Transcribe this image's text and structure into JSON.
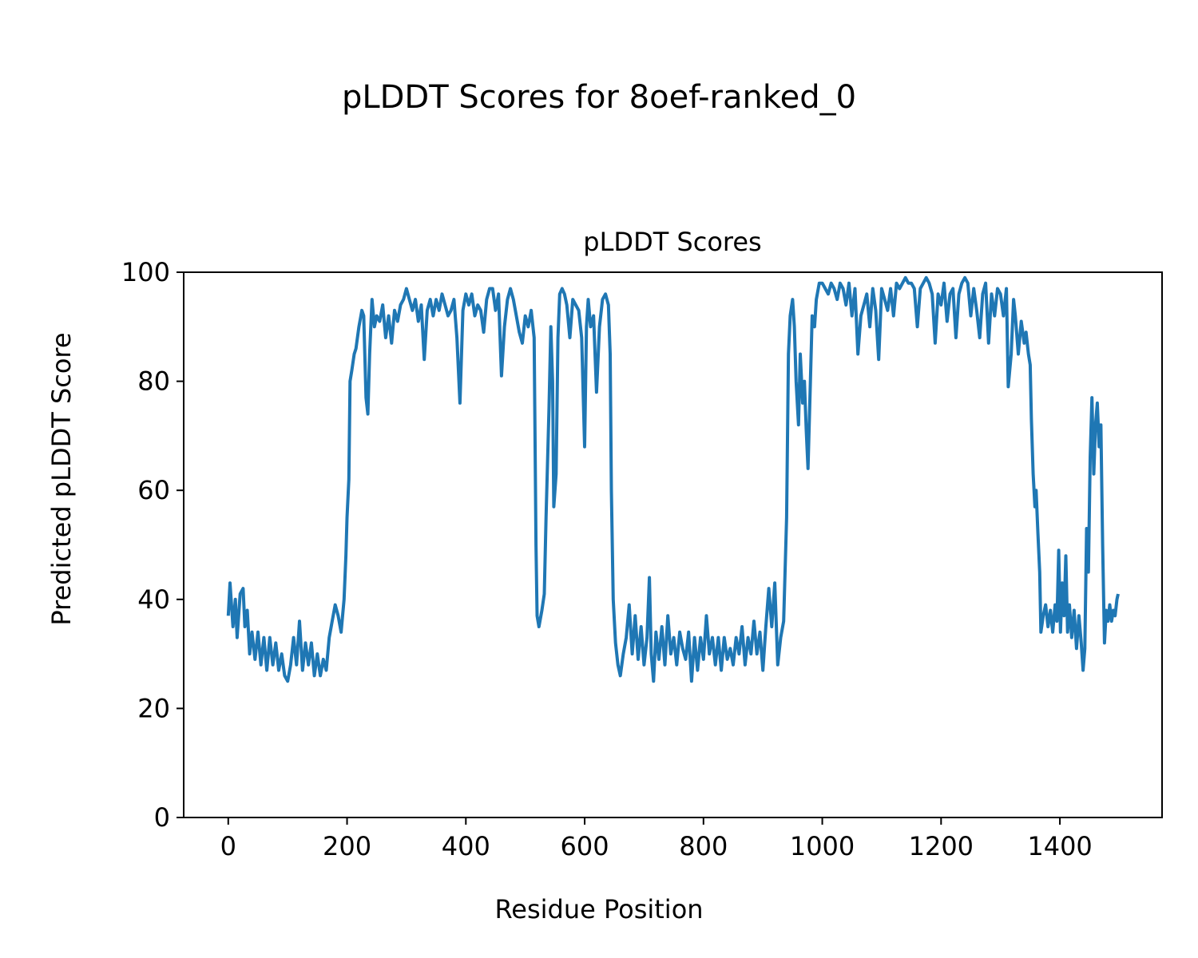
{
  "chart_data": {
    "type": "line",
    "suptitle": "pLDDT Scores for 8oef-ranked_0",
    "title": "pLDDT Scores",
    "xlabel": "Residue Position",
    "ylabel": "Predicted pLDDT Score",
    "xlim": [
      -75,
      1572
    ],
    "ylim": [
      0,
      100
    ],
    "xticks": [
      0,
      200,
      400,
      600,
      800,
      1000,
      1200,
      1400
    ],
    "yticks": [
      0,
      20,
      40,
      60,
      80,
      100
    ],
    "grid": false,
    "series": [
      {
        "name": "pLDDT",
        "color": "#1f77b4",
        "x": [
          0,
          3,
          8,
          12,
          15,
          20,
          25,
          28,
          32,
          36,
          40,
          45,
          50,
          55,
          60,
          65,
          70,
          75,
          80,
          85,
          90,
          95,
          100,
          105,
          110,
          115,
          120,
          125,
          130,
          135,
          140,
          145,
          150,
          155,
          160,
          165,
          170,
          175,
          180,
          185,
          190,
          195,
          198,
          200,
          203,
          205,
          208,
          212,
          215,
          220,
          225,
          228,
          232,
          235,
          238,
          242,
          246,
          250,
          255,
          260,
          265,
          270,
          275,
          280,
          285,
          290,
          295,
          300,
          305,
          310,
          315,
          320,
          325,
          330,
          335,
          340,
          345,
          350,
          355,
          360,
          365,
          370,
          375,
          380,
          385,
          390,
          395,
          400,
          405,
          410,
          415,
          420,
          425,
          430,
          435,
          440,
          445,
          450,
          455,
          460,
          465,
          470,
          475,
          480,
          485,
          490,
          495,
          500,
          505,
          510,
          515,
          518,
          520,
          523,
          528,
          532,
          535,
          540,
          543,
          546,
          548,
          552,
          555,
          558,
          562,
          566,
          570,
          575,
          580,
          585,
          590,
          595,
          600,
          603,
          606,
          610,
          615,
          620,
          625,
          630,
          635,
          640,
          643,
          645,
          648,
          652,
          656,
          660,
          665,
          670,
          675,
          680,
          685,
          690,
          695,
          700,
          705,
          709,
          712,
          716,
          720,
          725,
          730,
          735,
          740,
          745,
          750,
          755,
          760,
          765,
          770,
          775,
          780,
          785,
          790,
          795,
          800,
          805,
          810,
          815,
          820,
          825,
          830,
          835,
          840,
          845,
          850,
          855,
          860,
          865,
          870,
          875,
          880,
          885,
          890,
          895,
          900,
          905,
          910,
          915,
          920,
          925,
          930,
          935,
          940,
          943,
          946,
          950,
          953,
          956,
          960,
          963,
          967,
          970,
          973,
          976,
          980,
          983,
          987,
          990,
          995,
          1000,
          1005,
          1010,
          1015,
          1020,
          1025,
          1030,
          1035,
          1040,
          1045,
          1050,
          1055,
          1060,
          1065,
          1070,
          1075,
          1080,
          1085,
          1090,
          1095,
          1100,
          1105,
          1110,
          1115,
          1120,
          1125,
          1130,
          1135,
          1140,
          1145,
          1150,
          1155,
          1160,
          1165,
          1170,
          1175,
          1180,
          1185,
          1190,
          1195,
          1200,
          1205,
          1210,
          1215,
          1220,
          1225,
          1230,
          1235,
          1240,
          1245,
          1250,
          1255,
          1260,
          1265,
          1270,
          1275,
          1280,
          1285,
          1290,
          1295,
          1300,
          1305,
          1310,
          1313,
          1318,
          1322,
          1325,
          1330,
          1335,
          1340,
          1343,
          1347,
          1350,
          1352,
          1355,
          1358,
          1360,
          1363,
          1366,
          1368,
          1372,
          1376,
          1380,
          1384,
          1388,
          1392,
          1395,
          1398,
          1401,
          1404,
          1407,
          1410,
          1413,
          1416,
          1420,
          1424,
          1428,
          1432,
          1436,
          1439,
          1442,
          1445,
          1448,
          1451,
          1454,
          1457,
          1460,
          1463,
          1466,
          1469,
          1472,
          1475,
          1478,
          1481,
          1484,
          1487,
          1490,
          1493,
          1496,
          1498
        ],
        "y": [
          37,
          43,
          35,
          40,
          33,
          41,
          42,
          35,
          38,
          30,
          34,
          29,
          34,
          28,
          33,
          27,
          33,
          28,
          32,
          27,
          30,
          26,
          25,
          28,
          33,
          28,
          36,
          27,
          32,
          28,
          32,
          26,
          30,
          26,
          29,
          27,
          33,
          36,
          39,
          37,
          34,
          40,
          48,
          55,
          62,
          80,
          82,
          85,
          86,
          90,
          93,
          92,
          77,
          74,
          85,
          95,
          90,
          92,
          91,
          94,
          88,
          92,
          87,
          93,
          91,
          94,
          95,
          97,
          95,
          93,
          95,
          91,
          94,
          84,
          93,
          95,
          92,
          95,
          93,
          96,
          94,
          92,
          93,
          95,
          88,
          76,
          93,
          96,
          94,
          96,
          92,
          94,
          93,
          89,
          95,
          97,
          97,
          93,
          96,
          81,
          90,
          95,
          97,
          95,
          92,
          89,
          87,
          92,
          90,
          93,
          88,
          50,
          37,
          35,
          38,
          41,
          55,
          75,
          90,
          80,
          57,
          63,
          88,
          96,
          97,
          96,
          94,
          88,
          95,
          94,
          93,
          88,
          68,
          90,
          95,
          90,
          92,
          78,
          90,
          95,
          96,
          94,
          85,
          60,
          40,
          32,
          28,
          26,
          30,
          33,
          39,
          30,
          37,
          29,
          35,
          28,
          33,
          44,
          30,
          25,
          34,
          29,
          35,
          28,
          37,
          30,
          33,
          28,
          34,
          31,
          29,
          34,
          25,
          33,
          27,
          33,
          29,
          37,
          30,
          33,
          28,
          33,
          27,
          33,
          29,
          31,
          28,
          33,
          30,
          35,
          28,
          33,
          30,
          36,
          30,
          34,
          27,
          35,
          42,
          35,
          43,
          28,
          33,
          36,
          55,
          85,
          92,
          95,
          90,
          80,
          72,
          85,
          76,
          80,
          71,
          64,
          80,
          92,
          90,
          95,
          98,
          98,
          97,
          96,
          98,
          97,
          95,
          98,
          97,
          94,
          98,
          92,
          97,
          85,
          92,
          94,
          96,
          90,
          97,
          93,
          84,
          97,
          95,
          93,
          97,
          92,
          98,
          97,
          98,
          99,
          98,
          98,
          97,
          90,
          97,
          98,
          99,
          98,
          96,
          87,
          96,
          94,
          98,
          91,
          96,
          97,
          88,
          96,
          98,
          99,
          98,
          92,
          97,
          93,
          88,
          96,
          98,
          87,
          96,
          92,
          97,
          96,
          92,
          97,
          79,
          85,
          95,
          92,
          85,
          91,
          87,
          89,
          85,
          83,
          73,
          63,
          57,
          60,
          52,
          45,
          34,
          37,
          39,
          35,
          38,
          34,
          39,
          36,
          49,
          34,
          43,
          37,
          48,
          34,
          39,
          33,
          38,
          31,
          37,
          32,
          27,
          31,
          53,
          45,
          66,
          77,
          63,
          72,
          76,
          68,
          72,
          50,
          32,
          38,
          36,
          39,
          36,
          38,
          37,
          40,
          41
        ]
      }
    ]
  }
}
